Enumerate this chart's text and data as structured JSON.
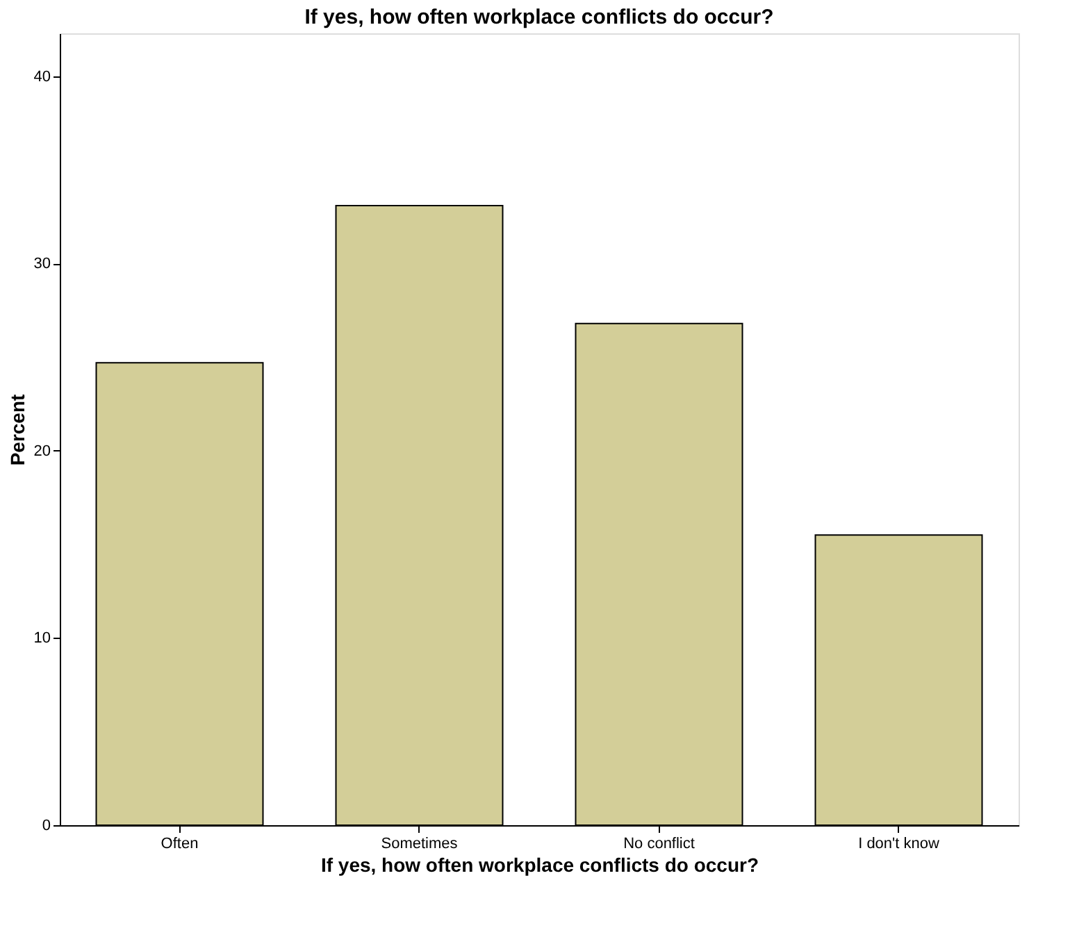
{
  "chart_data": {
    "type": "bar",
    "title": "If yes, how often workplace conflicts do occur?",
    "xlabel": "If yes, how often workplace conflicts do occur?",
    "ylabel": "Percent",
    "categories": [
      "Often",
      "Sometimes",
      "No conflict",
      "I don't know"
    ],
    "values": [
      24.7,
      33.1,
      26.8,
      15.5
    ],
    "color": "#d3ce98",
    "ylim": [
      0,
      42.3
    ],
    "yticks": [
      0,
      10,
      20,
      30,
      40
    ],
    "grid": false
  }
}
